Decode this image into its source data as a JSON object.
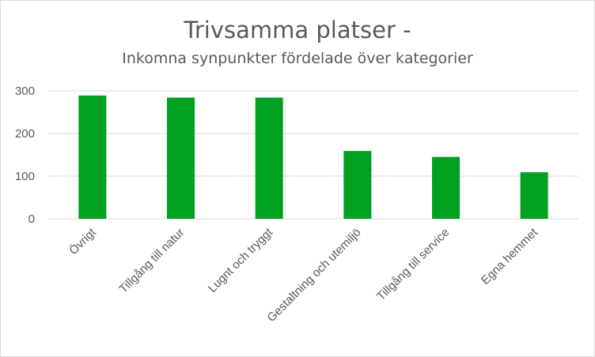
{
  "chart_data": {
    "type": "bar",
    "title": "Trivsamma platser -",
    "subtitle": "Inkomna synpunkter fördelade över kategorier",
    "categories": [
      "Övrigt",
      "Tillgång till natur",
      "Lugnt och tryggt",
      "Gestaltning och utemiljö",
      "Tillgång till service",
      "Egna hemmet"
    ],
    "values": [
      289,
      284,
      284,
      159,
      145,
      109
    ],
    "ylim": [
      0,
      300
    ],
    "yticks": [
      "0",
      "100",
      "200",
      "300"
    ],
    "grid": true,
    "legend": "none",
    "bar_color": "#00a020",
    "grid_color": "#d9d9d9",
    "axis_color": "#d9d9d9"
  }
}
